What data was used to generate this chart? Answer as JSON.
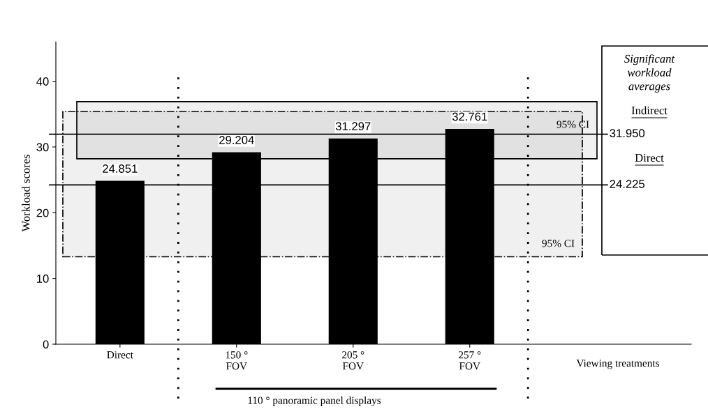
{
  "chart_data": {
    "type": "bar",
    "ylabel": "Workload scores",
    "xlabel": "Viewing treatments",
    "categories": [
      "Direct",
      "150 °\nFOV",
      "205 °\nFOV",
      "257 °\nFOV"
    ],
    "values": [
      24.851,
      29.204,
      31.297,
      32.761
    ],
    "color": "#000000",
    "data_labels": true,
    "ylim": [
      0,
      46
    ],
    "yticks": [
      0,
      10,
      20,
      30,
      40
    ],
    "grid": false,
    "legend": false,
    "ref_lines": [
      {
        "axis": "y",
        "value": 31.95,
        "label": "31.950",
        "color": "#000000"
      },
      {
        "axis": "y",
        "value": 24.225,
        "label": "24.225",
        "color": "#000000"
      }
    ],
    "bands": [
      {
        "axis": "y",
        "from": 28.2,
        "to": 36.9,
        "label": "95% CI",
        "color": "#000000"
      },
      {
        "axis": "y",
        "from": 13.3,
        "to": 35.4,
        "label": "95% CI",
        "color": "#000000"
      }
    ],
    "annotations": [
      "Significant\nworkload\naverages",
      "Indirect",
      "Direct",
      "110 ° panoramic panel displays"
    ]
  }
}
